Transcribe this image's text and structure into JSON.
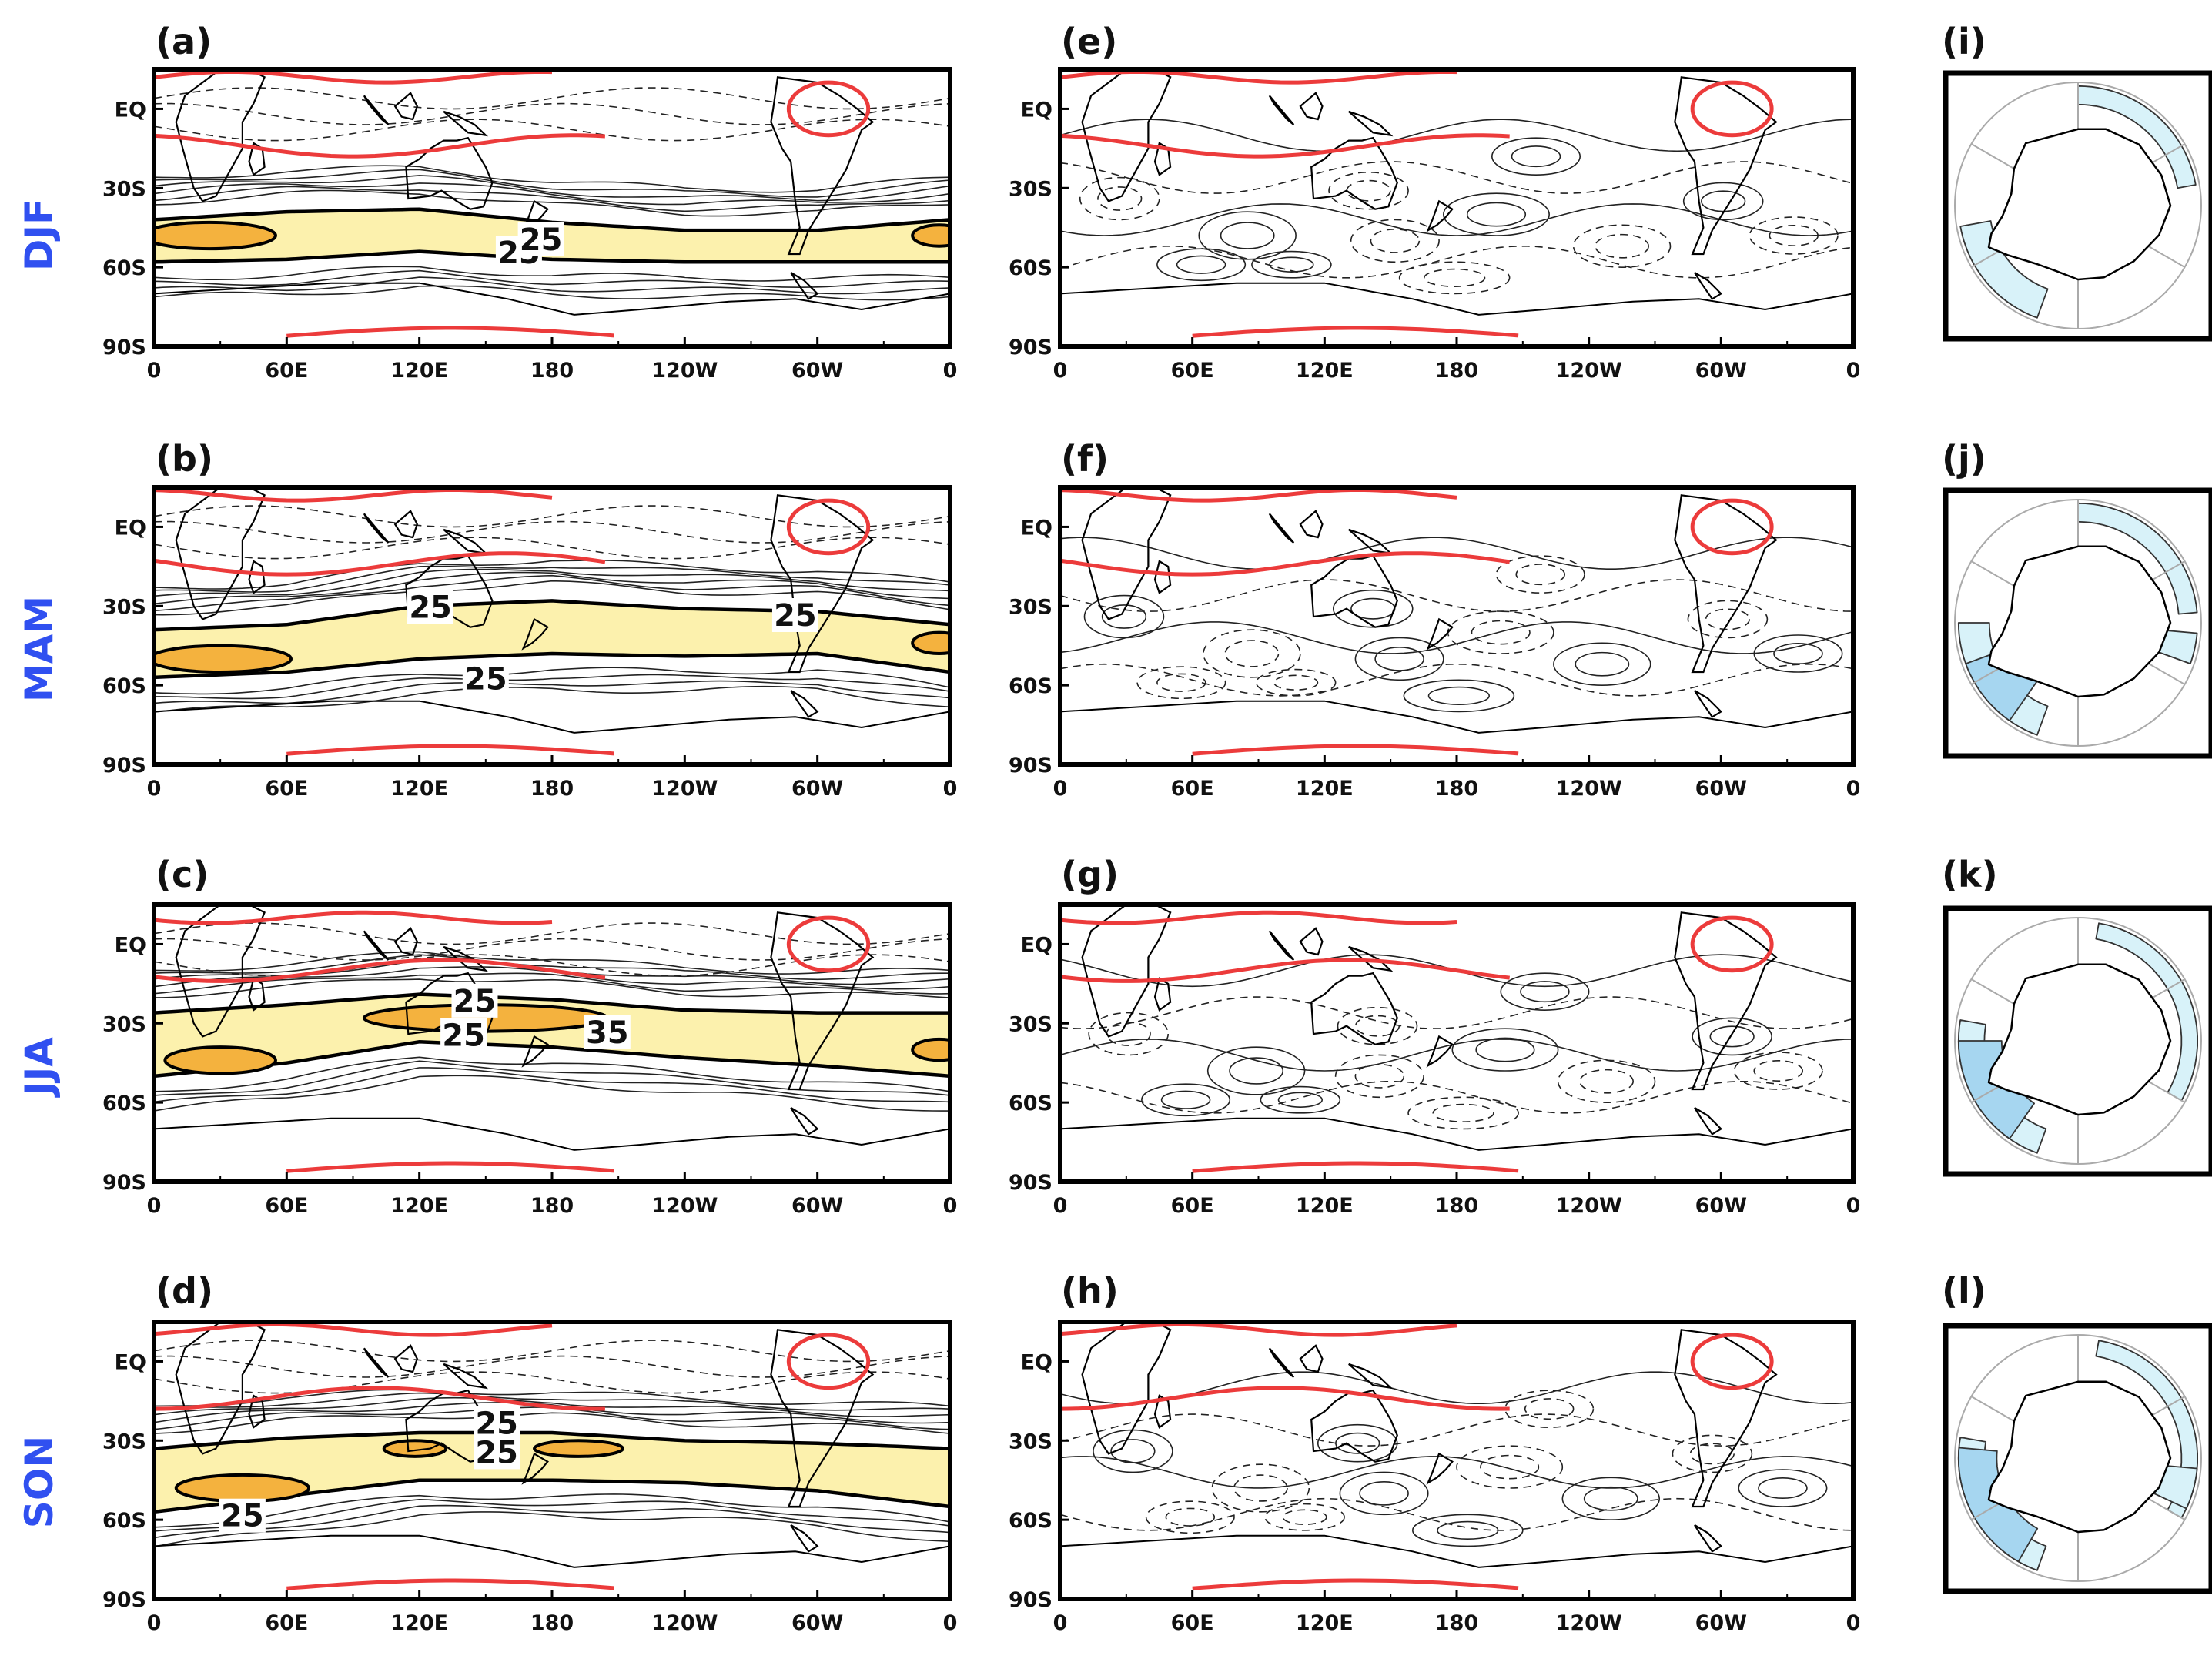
{
  "chart_data": {
    "type": "contour",
    "seasons": [
      "DJF",
      "MAM",
      "JJA",
      "SON"
    ],
    "x_ticks": [
      "0",
      "60E",
      "120E",
      "180",
      "120W",
      "60W",
      "0"
    ],
    "y_ticks": [
      "EQ",
      "30S",
      "60S",
      "90S"
    ],
    "xlim": [
      0,
      360
    ],
    "ylim": [
      -90,
      15
    ],
    "colors": {
      "jet_light": "#fcf1ad",
      "jet_strong": "#f4b23e",
      "red_contour": "#ec3b3b",
      "ice_light": "#d8f2f9",
      "ice_mid": "#a6d6f0",
      "season_label": "#3050f0"
    },
    "columns": {
      "left": {
        "panels": [
          {
            "label": "(a)",
            "season": "DJF",
            "contour_labels": [
              "25",
              "25"
            ],
            "jet": [
              [
                0,
                -50,
                8
              ],
              [
                60,
                -48,
                9
              ],
              [
                120,
                -46,
                8
              ],
              [
                180,
                -50,
                7
              ],
              [
                240,
                -52,
                6
              ],
              [
                300,
                -52,
                6
              ],
              [
                360,
                -50,
                8
              ]
            ],
            "core": [
              {
                "lon": 25,
                "lat": -48,
                "w": 30,
                "h": 5
              },
              {
                "lon": 355,
                "lat": -48,
                "w": 12,
                "h": 4
              }
            ],
            "label_pos": [
              [
                165,
                -55
              ],
              [
                175,
                -50
              ]
            ]
          },
          {
            "label": "(b)",
            "season": "MAM",
            "contour_labels": [
              "25",
              "25",
              "25"
            ],
            "jet": [
              [
                0,
                -48,
                9
              ],
              [
                60,
                -46,
                9
              ],
              [
                120,
                -40,
                10
              ],
              [
                180,
                -38,
                10
              ],
              [
                240,
                -40,
                9
              ],
              [
                300,
                -40,
                8
              ],
              [
                360,
                -46,
                9
              ]
            ],
            "core": [
              {
                "lon": 30,
                "lat": -50,
                "w": 32,
                "h": 5
              },
              {
                "lon": 355,
                "lat": -44,
                "w": 12,
                "h": 4
              }
            ],
            "label_pos": [
              [
                125,
                -31
              ],
              [
                290,
                -34
              ],
              [
                150,
                -58
              ]
            ]
          },
          {
            "label": "(c)",
            "season": "JJA",
            "contour_labels": [
              "25",
              "25",
              "35"
            ],
            "jet": [
              [
                0,
                -38,
                12
              ],
              [
                60,
                -34,
                11
              ],
              [
                120,
                -28,
                9
              ],
              [
                180,
                -30,
                9
              ],
              [
                240,
                -34,
                9
              ],
              [
                300,
                -36,
                10
              ],
              [
                360,
                -38,
                12
              ]
            ],
            "core": [
              {
                "lon": 30,
                "lat": -44,
                "w": 25,
                "h": 5
              },
              {
                "lon": 150,
                "lat": -28,
                "w": 55,
                "h": 5
              },
              {
                "lon": 355,
                "lat": -40,
                "w": 12,
                "h": 4
              }
            ],
            "label_pos": [
              [
                145,
                -22
              ],
              [
                140,
                -35
              ],
              [
                205,
                -34
              ]
            ]
          },
          {
            "label": "(d)",
            "season": "SON",
            "contour_labels": [
              "25",
              "25",
              "25"
            ],
            "jet": [
              [
                0,
                -45,
                12
              ],
              [
                60,
                -40,
                11
              ],
              [
                120,
                -36,
                9
              ],
              [
                180,
                -36,
                9
              ],
              [
                240,
                -38,
                8
              ],
              [
                300,
                -40,
                9
              ],
              [
                360,
                -44,
                11
              ]
            ],
            "core": [
              {
                "lon": 40,
                "lat": -48,
                "w": 30,
                "h": 5
              },
              {
                "lon": 118,
                "lat": -33,
                "w": 14,
                "h": 3
              },
              {
                "lon": 192,
                "lat": -33,
                "w": 20,
                "h": 3
              }
            ],
            "label_pos": [
              [
                155,
                -24
              ],
              [
                155,
                -35
              ],
              [
                40,
                -59
              ]
            ]
          }
        ]
      },
      "middle": {
        "panels": [
          {
            "label": "(e)"
          },
          {
            "label": "(f)"
          },
          {
            "label": "(g)"
          },
          {
            "label": "(h)"
          }
        ]
      },
      "right": {
        "panels": [
          {
            "label": "(i)",
            "ice_light": [
              [
                0,
                80,
                0.82
              ],
              [
                200,
                60,
                0.72
              ]
            ],
            "ice_mid": []
          },
          {
            "label": "(j)",
            "ice_light": [
              [
                0,
                85,
                0.82
              ],
              [
                200,
                70,
                0.72
              ],
              [
                95,
                15,
                0.5
              ]
            ],
            "ice_mid": [
              [
                215,
                35,
                0.55
              ]
            ]
          },
          {
            "label": "(k)",
            "ice_light": [
              [
                10,
                110,
                0.84
              ],
              [
                200,
                80,
                0.76
              ]
            ],
            "ice_mid": [
              [
                215,
                55,
                0.62
              ]
            ]
          },
          {
            "label": "(l)",
            "ice_light": [
              [
                10,
                110,
                0.84
              ],
              [
                200,
                80,
                0.76
              ],
              [
                95,
                20,
                0.5
              ]
            ],
            "ice_mid": [
              [
                210,
                65,
                0.66
              ]
            ]
          }
        ]
      }
    }
  }
}
